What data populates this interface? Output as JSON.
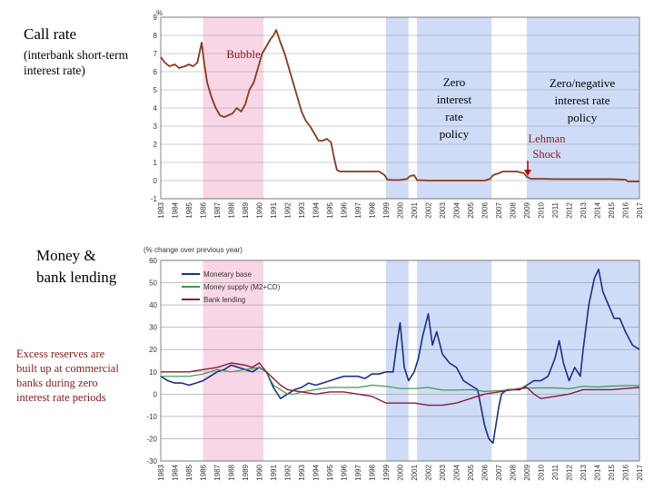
{
  "panel_labels": {
    "top_title": "Call rate",
    "top_subtitle": "(interbank short-term interest rate)",
    "bottom_title": "Money & bank lending",
    "bottom_note": "Excess reserves are built up at commercial banks during zero interest rate periods"
  },
  "colors": {
    "bubble_band": "#f9d6e6",
    "policy_band": "#cfdcf7",
    "call_rate": "#8b3a1a",
    "monetary_base": "#1a2f8a",
    "money_supply": "#3a9a4a",
    "bank_lending": "#8b1a3a"
  },
  "annotations": {
    "bubble": "Bubble",
    "zero_policy": "Zero interest rate policy",
    "zero_negative_policy": "Zero/negative interest rate policy",
    "lehman": "Lehman Shock"
  },
  "chart_data": [
    {
      "type": "line",
      "title": "Call rate",
      "ylabel": "%",
      "ylim": [
        -1,
        9
      ],
      "yticks": [
        "-1",
        "0",
        "1",
        "2",
        "3",
        "4",
        "5",
        "6",
        "7",
        "8",
        "9"
      ],
      "xlim": [
        1983,
        2017
      ],
      "x_tick_labels": [
        "1983",
        "1984",
        "1985",
        "1986",
        "1987",
        "1988",
        "1989",
        "1990",
        "1991",
        "1992",
        "1993",
        "1994",
        "1995",
        "1996",
        "1997",
        "1998",
        "1999",
        "2000",
        "2001",
        "2002",
        "2003",
        "2004",
        "2005",
        "2006",
        "2007",
        "2008",
        "2009",
        "2010",
        "2011",
        "2012",
        "2013",
        "2014",
        "2015",
        "2016",
        "2017"
      ],
      "shaded_periods": [
        {
          "name": "Bubble",
          "start": 1986.0,
          "end": 1990.3
        },
        {
          "name": "Zero interest rate policy",
          "start": 1999.0,
          "end": 2000.6
        },
        {
          "name": "Zero interest rate policy",
          "start": 2001.2,
          "end": 2006.5
        },
        {
          "name": "Zero/negative interest rate policy",
          "start": 2009.0,
          "end": 2017.0
        }
      ],
      "series": [
        {
          "name": "Call rate",
          "x": [
            1983,
            1983.3,
            1983.6,
            1984,
            1984.3,
            1984.7,
            1985,
            1985.3,
            1985.6,
            1985.9,
            1986.1,
            1986.3,
            1986.6,
            1986.9,
            1987.2,
            1987.5,
            1987.8,
            1988.1,
            1988.4,
            1988.7,
            1989.0,
            1989.3,
            1989.6,
            1989.9,
            1990.2,
            1990.5,
            1990.8,
            1991.0,
            1991.2,
            1991.5,
            1991.8,
            1992.1,
            1992.4,
            1992.7,
            1993.0,
            1993.3,
            1993.6,
            1993.9,
            1994.2,
            1994.5,
            1994.8,
            1995.1,
            1995.3,
            1995.5,
            1995.7,
            1996.0,
            1996.5,
            1997.0,
            1997.5,
            1998.0,
            1998.5,
            1998.9,
            1999.1,
            1999.5,
            2000.0,
            2000.5,
            2000.7,
            2001.0,
            2001.2,
            2001.6,
            2002,
            2003,
            2004,
            2005,
            2006,
            2006.4,
            2006.6,
            2007.0,
            2007.3,
            2007.8,
            2008.3,
            2008.8,
            2009.0,
            2009.3,
            2010,
            2011,
            2012,
            2013,
            2014,
            2015,
            2016,
            2016.2,
            2017
          ],
          "y": [
            6.8,
            6.5,
            6.3,
            6.4,
            6.2,
            6.3,
            6.4,
            6.3,
            6.5,
            7.6,
            6.4,
            5.4,
            4.6,
            4.0,
            3.6,
            3.5,
            3.6,
            3.7,
            4.0,
            3.8,
            4.2,
            5.0,
            5.4,
            6.2,
            7.0,
            7.4,
            7.8,
            8.0,
            8.3,
            7.6,
            7.0,
            6.2,
            5.4,
            4.6,
            3.8,
            3.3,
            3.0,
            2.6,
            2.2,
            2.2,
            2.3,
            2.1,
            1.3,
            0.6,
            0.5,
            0.5,
            0.5,
            0.5,
            0.5,
            0.5,
            0.5,
            0.3,
            0.05,
            0.03,
            0.03,
            0.1,
            0.25,
            0.3,
            0.02,
            0.02,
            0.0,
            0.0,
            0.0,
            0.0,
            0.0,
            0.1,
            0.3,
            0.4,
            0.5,
            0.5,
            0.5,
            0.4,
            0.2,
            0.1,
            0.1,
            0.08,
            0.08,
            0.08,
            0.08,
            0.08,
            0.05,
            -0.05,
            -0.05
          ]
        }
      ]
    },
    {
      "type": "line",
      "title": "Money & bank lending",
      "ylabel": "(% change over previous year)",
      "ylim": [
        -30,
        60
      ],
      "yticks": [
        "-30",
        "-20",
        "-10",
        "0",
        "10",
        "20",
        "30",
        "40",
        "50",
        "60"
      ],
      "xlim": [
        1983,
        2017
      ],
      "x_tick_labels": [
        "1983",
        "1984",
        "1985",
        "1986",
        "1987",
        "1988",
        "1989",
        "1990",
        "1991",
        "1992",
        "1993",
        "1994",
        "1995",
        "1996",
        "1997",
        "1998",
        "1999",
        "2000",
        "2001",
        "2002",
        "2003",
        "2004",
        "2005",
        "2006",
        "2007",
        "2008",
        "2009",
        "2010",
        "2011",
        "2012",
        "2013",
        "2014",
        "2015",
        "2016",
        "2017"
      ],
      "legend": [
        "Monetary base",
        "Money supply (M2+CD)",
        "Bank lending"
      ],
      "legend_position": "top-left",
      "series": [
        {
          "name": "Monetary base",
          "x": [
            1983,
            1983.5,
            1984,
            1984.5,
            1985,
            1985.5,
            1986,
            1986.5,
            1987,
            1987.5,
            1988,
            1988.5,
            1989,
            1989.5,
            1990,
            1990.5,
            1991,
            1991.5,
            1992,
            1992.5,
            1993,
            1993.5,
            1994,
            1994.5,
            1995,
            1995.5,
            1996,
            1996.5,
            1997,
            1997.5,
            1998,
            1998.5,
            1999,
            1999.5,
            1999.8,
            2000.0,
            2000.3,
            2000.6,
            2001,
            2001.3,
            2001.6,
            2002.0,
            2002.3,
            2002.6,
            2003,
            2003.5,
            2004,
            2004.5,
            2005,
            2005.5,
            2006.0,
            2006.3,
            2006.6,
            2007.0,
            2007.2,
            2007.6,
            2008,
            2008.5,
            2009,
            2009.5,
            2010,
            2010.5,
            2011,
            2011.3,
            2011.6,
            2012,
            2012.4,
            2012.8,
            2013,
            2013.4,
            2013.8,
            2014.1,
            2014.4,
            2014.8,
            2015.2,
            2015.6,
            2016,
            2016.5,
            2017
          ],
          "y": [
            8,
            6,
            5,
            5,
            4,
            5,
            6,
            8,
            10,
            11,
            13,
            12,
            11,
            10,
            12,
            10,
            3,
            -2,
            0,
            2,
            3,
            5,
            4,
            5,
            6,
            7,
            8,
            8,
            8,
            7,
            9,
            9,
            10,
            10,
            24,
            32,
            12,
            6,
            10,
            16,
            26,
            36,
            22,
            28,
            18,
            14,
            12,
            6,
            4,
            2,
            -14,
            -20,
            -22,
            -6,
            0,
            2,
            2,
            2,
            4,
            6,
            6,
            8,
            16,
            24,
            14,
            6,
            12,
            8,
            20,
            40,
            52,
            56,
            46,
            40,
            34,
            34,
            28,
            22,
            20
          ]
        },
        {
          "name": "Money supply (M2+CD)",
          "x": [
            1983,
            1984,
            1985,
            1986,
            1987,
            1988,
            1989,
            1990,
            1990.5,
            1991,
            1991.5,
            1992,
            1992.5,
            1993,
            1994,
            1995,
            1996,
            1997,
            1998,
            1999,
            2000,
            2001,
            2002,
            2003,
            2004,
            2005,
            2006,
            2007,
            2008,
            2009,
            2010,
            2011,
            2012,
            2013,
            2014,
            2015,
            2016,
            2017
          ],
          "y": [
            8,
            8,
            8,
            9,
            11,
            10,
            11,
            12,
            10,
            4,
            2,
            0,
            0,
            1,
            2,
            3,
            3,
            3,
            4,
            3.5,
            2.5,
            2.5,
            3,
            1.8,
            1.8,
            2,
            1.2,
            1.5,
            2,
            2.7,
            2.8,
            2.8,
            2.4,
            3.5,
            3.2,
            3.6,
            3.8,
            3.8
          ]
        },
        {
          "name": "Bank lending",
          "x": [
            1983,
            1984,
            1985,
            1986,
            1987,
            1988,
            1989,
            1989.5,
            1990,
            1990.5,
            1991,
            1991.5,
            1992,
            1993,
            1994,
            1995,
            1996,
            1997,
            1998,
            1999,
            2000,
            2001,
            2002,
            2003,
            2004,
            2005,
            2006,
            2007,
            2008,
            2009,
            2009.5,
            2010,
            2011,
            2012,
            2013,
            2014,
            2015,
            2016,
            2017
          ],
          "y": [
            10,
            10,
            10,
            11,
            12,
            14,
            13,
            12,
            14,
            10,
            7,
            4,
            2,
            1,
            0,
            1,
            1,
            0,
            -1,
            -4,
            -4,
            -4,
            -5,
            -5,
            -4,
            -2,
            0,
            1,
            2,
            3,
            0,
            -2,
            -1,
            0,
            2,
            2,
            2,
            2.5,
            3
          ]
        }
      ]
    }
  ]
}
